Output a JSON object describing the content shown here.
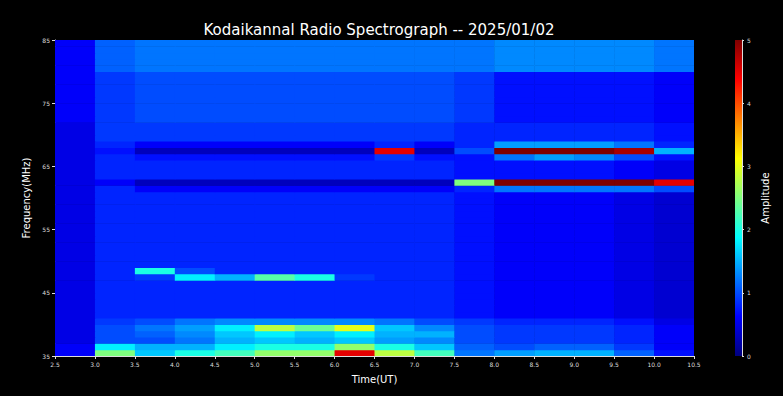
{
  "chart_data": {
    "type": "heatmap",
    "title": "Kodaikannal Radio Spectrograph -- 2025/01/02",
    "xlabel": "Time(UT)",
    "ylabel": "Frequency(MHz)",
    "xlim": [
      2.5,
      10.5
    ],
    "xticks": [
      2.5,
      {
        "value": 3,
        "label": "3.0"
      },
      3.5,
      {
        "value": 4,
        "label": "4.0"
      },
      4.5,
      {
        "value": 5,
        "label": "5.0"
      },
      5.5,
      {
        "value": 6,
        "label": "6.0"
      },
      6.5,
      {
        "value": 7,
        "label": "7.0"
      },
      7.5,
      {
        "value": 8,
        "label": "8.0"
      },
      8.5,
      {
        "value": 9,
        "label": "9.0"
      },
      9.5,
      {
        "value": 10,
        "label": "10.0"
      },
      10.5
    ],
    "ylim": [
      35,
      85
    ],
    "yticks": [
      35,
      45,
      55,
      65,
      75,
      85
    ],
    "cells": {
      "time_edges": [
        2.5,
        3,
        3.5,
        4,
        4.5,
        5,
        5.5,
        6,
        6.5,
        7,
        7.5,
        8,
        8.5,
        9,
        9.5,
        10,
        10.5
      ],
      "frequency_edges": [
        35,
        36,
        37,
        38,
        39,
        40,
        41,
        42,
        43,
        44,
        45,
        46,
        47,
        48,
        49,
        50,
        51,
        52,
        53,
        54,
        55,
        56,
        57,
        58,
        59,
        60,
        61,
        62,
        63,
        64,
        65,
        66,
        67,
        68,
        69,
        70,
        71,
        72,
        73,
        74,
        75,
        76,
        77,
        78,
        79,
        80,
        81,
        82,
        83,
        84,
        85
      ],
      "amplitude": [
        [
          0.6,
          2.5,
          1.6,
          2.0,
          2.2,
          2.6,
          2.6,
          4.5,
          2.8,
          2.2,
          1.2,
          1.4,
          1.5,
          1.5,
          1.1,
          0.7
        ],
        [
          0.6,
          1.8,
          1.5,
          1.5,
          1.8,
          2.0,
          2.0,
          2.6,
          2.0,
          1.6,
          1.1,
          1.0,
          1.1,
          1.1,
          0.9,
          0.6
        ],
        [
          0.5,
          1.0,
          1.0,
          1.2,
          1.5,
          1.6,
          1.5,
          1.6,
          1.4,
          1.3,
          1.0,
          0.9,
          0.9,
          0.9,
          0.8,
          0.6
        ],
        [
          0.5,
          1.0,
          1.1,
          1.3,
          1.6,
          1.8,
          1.6,
          1.8,
          1.5,
          1.5,
          1.0,
          0.9,
          0.9,
          0.9,
          0.8,
          0.6
        ],
        [
          0.5,
          1.0,
          1.2,
          1.4,
          1.8,
          2.8,
          2.4,
          3.0,
          1.6,
          1.3,
          1.0,
          0.9,
          0.9,
          0.9,
          0.8,
          0.6
        ],
        [
          0.5,
          0.9,
          1.0,
          1.2,
          1.3,
          1.3,
          1.3,
          1.3,
          1.2,
          1.0,
          0.9,
          0.8,
          0.8,
          0.8,
          0.7,
          0.5
        ],
        [
          0.5,
          0.8,
          0.8,
          0.8,
          0.8,
          0.8,
          0.8,
          0.8,
          0.8,
          0.8,
          0.7,
          0.6,
          0.6,
          0.6,
          0.5,
          0.4
        ],
        [
          0.5,
          0.8,
          0.8,
          0.8,
          0.8,
          0.8,
          0.8,
          0.8,
          0.8,
          0.8,
          0.7,
          0.6,
          0.6,
          0.6,
          0.5,
          0.4
        ],
        [
          0.5,
          0.8,
          0.8,
          0.8,
          0.8,
          0.8,
          0.8,
          0.8,
          0.8,
          0.8,
          0.7,
          0.6,
          0.6,
          0.6,
          0.5,
          0.4
        ],
        [
          0.5,
          0.8,
          0.8,
          0.8,
          0.8,
          0.8,
          0.8,
          0.8,
          0.8,
          0.8,
          0.7,
          0.6,
          0.6,
          0.6,
          0.5,
          0.4
        ],
        [
          0.5,
          0.8,
          0.8,
          0.8,
          0.8,
          0.8,
          0.8,
          0.8,
          0.8,
          0.8,
          0.7,
          0.6,
          0.6,
          0.6,
          0.5,
          0.4
        ],
        [
          0.5,
          0.8,
          0.8,
          0.8,
          0.8,
          0.8,
          0.8,
          0.8,
          0.8,
          0.8,
          0.7,
          0.6,
          0.6,
          0.6,
          0.5,
          0.4
        ],
        [
          0.5,
          0.8,
          0.9,
          1.8,
          1.5,
          2.3,
          2.0,
          0.9,
          0.8,
          0.8,
          0.7,
          0.6,
          0.6,
          0.6,
          0.5,
          0.4
        ],
        [
          0.5,
          0.8,
          2.0,
          1.0,
          0.8,
          0.8,
          0.8,
          0.8,
          0.8,
          0.8,
          0.7,
          0.6,
          0.6,
          0.6,
          0.5,
          0.4
        ],
        [
          0.5,
          0.8,
          0.8,
          0.8,
          0.8,
          0.8,
          0.8,
          0.8,
          0.8,
          0.8,
          0.7,
          0.6,
          0.6,
          0.6,
          0.5,
          0.4
        ],
        [
          0.5,
          0.8,
          0.8,
          0.8,
          0.8,
          0.8,
          0.8,
          0.8,
          0.8,
          0.8,
          0.7,
          0.6,
          0.6,
          0.6,
          0.5,
          0.4
        ],
        [
          0.5,
          0.8,
          0.8,
          0.8,
          0.8,
          0.8,
          0.8,
          0.8,
          0.8,
          0.8,
          0.7,
          0.6,
          0.6,
          0.6,
          0.5,
          0.4
        ],
        [
          0.5,
          0.8,
          0.8,
          0.8,
          0.8,
          0.8,
          0.8,
          0.8,
          0.8,
          0.8,
          0.7,
          0.6,
          0.6,
          0.6,
          0.5,
          0.4
        ],
        [
          0.5,
          0.8,
          0.8,
          0.8,
          0.8,
          0.8,
          0.8,
          0.8,
          0.8,
          0.8,
          0.7,
          0.6,
          0.6,
          0.6,
          0.5,
          0.4
        ],
        [
          0.5,
          0.8,
          0.8,
          0.8,
          0.8,
          0.8,
          0.8,
          0.8,
          0.8,
          0.8,
          0.7,
          0.6,
          0.6,
          0.6,
          0.5,
          0.4
        ],
        [
          0.5,
          0.8,
          0.8,
          0.8,
          0.8,
          0.8,
          0.8,
          0.8,
          0.8,
          0.8,
          0.7,
          0.6,
          0.6,
          0.6,
          0.5,
          0.4
        ],
        [
          0.5,
          0.8,
          0.8,
          0.8,
          0.8,
          0.8,
          0.8,
          0.8,
          0.8,
          0.8,
          0.7,
          0.6,
          0.6,
          0.6,
          0.5,
          0.4
        ],
        [
          0.5,
          0.8,
          0.8,
          0.8,
          0.8,
          0.8,
          0.8,
          0.8,
          0.8,
          0.8,
          0.7,
          0.6,
          0.6,
          0.6,
          0.5,
          0.4
        ],
        [
          0.5,
          0.8,
          0.8,
          0.8,
          0.8,
          0.8,
          0.8,
          0.8,
          0.8,
          0.8,
          0.7,
          0.6,
          0.6,
          0.6,
          0.5,
          0.4
        ],
        [
          0.5,
          0.8,
          0.8,
          0.8,
          0.8,
          0.8,
          0.8,
          0.8,
          0.8,
          0.8,
          0.7,
          0.6,
          0.6,
          0.6,
          0.5,
          0.4
        ],
        [
          0.5,
          0.8,
          0.8,
          0.8,
          0.8,
          0.8,
          0.8,
          0.8,
          0.8,
          0.8,
          0.7,
          0.6,
          0.6,
          0.6,
          0.5,
          0.4
        ],
        [
          0.5,
          0.8,
          0.6,
          0.6,
          0.6,
          0.6,
          0.6,
          0.6,
          0.6,
          0.6,
          0.8,
          1.2,
          1.2,
          1.2,
          1.2,
          1.0
        ],
        [
          0.5,
          0.6,
          0.3,
          0.3,
          0.3,
          0.3,
          0.3,
          0.3,
          0.3,
          0.3,
          2.5,
          5,
          5,
          5,
          5,
          4.5
        ],
        [
          0.5,
          0.8,
          0.8,
          0.8,
          0.8,
          0.8,
          0.8,
          0.8,
          0.8,
          0.8,
          0.7,
          0.7,
          0.7,
          0.7,
          0.6,
          0.5
        ],
        [
          0.5,
          0.8,
          0.8,
          0.8,
          0.8,
          0.8,
          0.8,
          0.8,
          0.8,
          0.8,
          0.7,
          0.7,
          0.7,
          0.7,
          0.6,
          0.5
        ],
        [
          0.5,
          0.8,
          0.8,
          0.8,
          0.8,
          0.8,
          0.8,
          0.8,
          0.8,
          0.8,
          0.7,
          0.7,
          0.7,
          0.7,
          0.6,
          0.5
        ],
        [
          0.5,
          0.8,
          0.7,
          0.7,
          0.7,
          0.7,
          0.7,
          0.7,
          0.9,
          0.7,
          0.7,
          1.2,
          1.4,
          1.3,
          1.0,
          0.7
        ],
        [
          0.5,
          0.7,
          0.3,
          0.3,
          0.3,
          0.3,
          0.3,
          0.3,
          4.5,
          0.3,
          1.0,
          5,
          5,
          5,
          4.8,
          1.5
        ],
        [
          0.5,
          0.8,
          0.6,
          0.6,
          0.6,
          0.6,
          0.6,
          0.6,
          0.8,
          0.6,
          0.8,
          1.4,
          1.4,
          1.4,
          1.2,
          0.8
        ],
        [
          0.5,
          0.9,
          0.9,
          0.9,
          0.9,
          0.9,
          0.9,
          0.9,
          0.9,
          0.9,
          0.8,
          0.8,
          0.8,
          0.8,
          0.8,
          0.7
        ],
        [
          0.5,
          0.9,
          0.9,
          0.9,
          0.9,
          0.9,
          0.9,
          0.9,
          0.9,
          0.9,
          0.8,
          0.8,
          0.8,
          0.8,
          0.8,
          0.7
        ],
        [
          0.5,
          0.9,
          0.9,
          0.9,
          0.9,
          0.9,
          0.9,
          0.9,
          0.9,
          0.9,
          0.8,
          0.8,
          0.8,
          0.8,
          0.8,
          0.7
        ],
        [
          0.6,
          0.9,
          1.0,
          1.0,
          1.0,
          1.0,
          1.0,
          1.0,
          1.0,
          1.0,
          0.9,
          0.7,
          0.7,
          0.7,
          0.7,
          0.6
        ],
        [
          0.6,
          0.9,
          1.0,
          1.0,
          1.0,
          1.0,
          1.0,
          1.0,
          1.0,
          1.0,
          0.9,
          0.7,
          0.7,
          0.7,
          0.7,
          0.6
        ],
        [
          0.6,
          0.9,
          1.0,
          1.0,
          1.0,
          1.0,
          1.0,
          1.0,
          1.0,
          1.0,
          0.9,
          0.7,
          0.7,
          0.7,
          0.7,
          0.6
        ],
        [
          0.6,
          0.9,
          1.0,
          1.0,
          1.0,
          1.0,
          1.0,
          1.0,
          1.0,
          1.0,
          0.9,
          0.7,
          0.7,
          0.7,
          0.7,
          0.6
        ],
        [
          0.6,
          0.9,
          1.0,
          1.0,
          1.0,
          1.0,
          1.0,
          1.0,
          1.0,
          1.0,
          0.9,
          0.7,
          0.7,
          0.7,
          0.7,
          0.6
        ],
        [
          0.6,
          0.9,
          1.0,
          1.0,
          1.0,
          1.0,
          1.0,
          1.0,
          1.0,
          1.0,
          0.9,
          0.7,
          0.7,
          0.7,
          0.7,
          0.6
        ],
        [
          0.6,
          0.9,
          1.0,
          1.0,
          1.0,
          1.0,
          1.0,
          1.0,
          1.0,
          1.0,
          0.9,
          0.7,
          0.7,
          0.7,
          0.7,
          0.6
        ],
        [
          0.6,
          0.9,
          1.0,
          1.0,
          1.0,
          1.0,
          1.0,
          1.0,
          1.0,
          1.0,
          0.9,
          0.7,
          0.7,
          0.7,
          0.7,
          0.6
        ],
        [
          0.6,
          1.1,
          1.2,
          1.2,
          1.2,
          1.2,
          1.2,
          1.2,
          1.2,
          1.2,
          1.2,
          1.3,
          1.3,
          1.3,
          1.3,
          1.2
        ],
        [
          0.6,
          1.1,
          1.2,
          1.2,
          1.2,
          1.2,
          1.2,
          1.2,
          1.2,
          1.2,
          1.2,
          1.3,
          1.3,
          1.3,
          1.3,
          1.2
        ],
        [
          0.6,
          1.1,
          1.2,
          1.2,
          1.2,
          1.2,
          1.2,
          1.2,
          1.2,
          1.2,
          1.2,
          1.3,
          1.3,
          1.3,
          1.3,
          1.2
        ],
        [
          0.6,
          1.1,
          1.2,
          1.2,
          1.2,
          1.2,
          1.2,
          1.2,
          1.2,
          1.2,
          1.2,
          1.3,
          1.3,
          1.3,
          1.3,
          1.2
        ],
        [
          0.6,
          1.1,
          1.2,
          1.2,
          1.2,
          1.2,
          1.2,
          1.2,
          1.2,
          1.2,
          1.2,
          1.3,
          1.3,
          1.3,
          1.3,
          1.2
        ]
      ]
    },
    "colorbar": {
      "label": "Amplitude",
      "range": [
        0,
        5
      ],
      "ticks": [
        0,
        1,
        2,
        3,
        4,
        5
      ]
    }
  }
}
